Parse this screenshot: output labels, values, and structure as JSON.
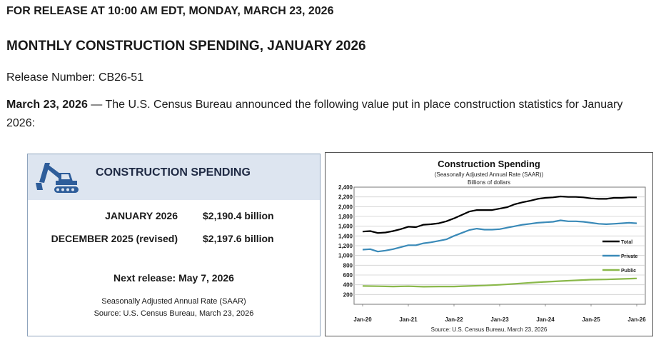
{
  "header": {
    "release_line": "FOR RELEASE AT 10:00 AM EDT, MONDAY, MARCH 23, 2026",
    "title": "MONTHLY CONSTRUCTION SPENDING, JANUARY 2026",
    "release_number": "Release Number: CB26-51",
    "intro_date": "March 23, 2026",
    "intro_text": " — The U.S. Census Bureau announced the following value put in place construction statistics for January 2026:"
  },
  "summary": {
    "title": "CONSTRUCTION SPENDING",
    "rows": [
      {
        "label": "JANUARY 2026",
        "value": "$2,190.4 billion"
      },
      {
        "label": "DECEMBER 2025 (revised)",
        "value": "$2,197.6 billion"
      }
    ],
    "next_release": "Next release: May 7, 2026",
    "saar_note": "Seasonally Adjusted Annual Rate (SAAR)",
    "source_note": "Source: U.S. Census Bureau, March 23, 2026",
    "icon": "excavator-icon",
    "colors": {
      "header_bg": "#dde5f0",
      "icon": "#2e5d9a"
    }
  },
  "chart_data": {
    "type": "line",
    "title": "Construction  Spending",
    "subtitle": "(Seasonally Adjusted Annual Rate (SAAR))",
    "unit_label": "Billions of dollars",
    "source": "Source: U.S. Census Bureau, March 23, 2026",
    "xlabel": "",
    "ylabel": "",
    "ylim": [
      0,
      2400
    ],
    "yticks": [
      "2,400",
      "2,200",
      "2,000",
      "1,800",
      "1,600",
      "1,400",
      "1,200",
      "1,000",
      "800",
      "600",
      "400",
      "200"
    ],
    "ytick_values": [
      2400,
      2200,
      2000,
      1800,
      1600,
      1400,
      1200,
      1000,
      800,
      600,
      400,
      200
    ],
    "xticks": [
      "Jan-20",
      "Jan-21",
      "Jan-22",
      "Jan-23",
      "Jan-24",
      "Jan-25",
      "Jan-26"
    ],
    "xtick_months": [
      0,
      12,
      24,
      36,
      48,
      60,
      72
    ],
    "month_span": [
      0,
      72
    ],
    "grid": true,
    "legend_position": "right",
    "series": [
      {
        "name": "Total",
        "color": "#000000",
        "points": [
          [
            0,
            1490
          ],
          [
            2,
            1500
          ],
          [
            4,
            1460
          ],
          [
            6,
            1470
          ],
          [
            8,
            1500
          ],
          [
            10,
            1540
          ],
          [
            12,
            1590
          ],
          [
            14,
            1580
          ],
          [
            16,
            1630
          ],
          [
            18,
            1640
          ],
          [
            20,
            1660
          ],
          [
            22,
            1700
          ],
          [
            24,
            1760
          ],
          [
            26,
            1830
          ],
          [
            28,
            1900
          ],
          [
            30,
            1930
          ],
          [
            32,
            1930
          ],
          [
            34,
            1930
          ],
          [
            36,
            1960
          ],
          [
            38,
            1990
          ],
          [
            40,
            2050
          ],
          [
            42,
            2090
          ],
          [
            44,
            2120
          ],
          [
            46,
            2160
          ],
          [
            48,
            2180
          ],
          [
            50,
            2190
          ],
          [
            52,
            2210
          ],
          [
            54,
            2200
          ],
          [
            56,
            2200
          ],
          [
            58,
            2190
          ],
          [
            60,
            2170
          ],
          [
            62,
            2160
          ],
          [
            64,
            2160
          ],
          [
            66,
            2180
          ],
          [
            68,
            2180
          ],
          [
            70,
            2190
          ],
          [
            72,
            2190
          ]
        ]
      },
      {
        "name": "Private",
        "color": "#3a8ab8",
        "points": [
          [
            0,
            1120
          ],
          [
            2,
            1130
          ],
          [
            4,
            1080
          ],
          [
            6,
            1100
          ],
          [
            8,
            1130
          ],
          [
            10,
            1170
          ],
          [
            12,
            1210
          ],
          [
            14,
            1210
          ],
          [
            16,
            1250
          ],
          [
            18,
            1270
          ],
          [
            20,
            1300
          ],
          [
            22,
            1330
          ],
          [
            24,
            1400
          ],
          [
            26,
            1460
          ],
          [
            28,
            1520
          ],
          [
            30,
            1550
          ],
          [
            32,
            1530
          ],
          [
            34,
            1530
          ],
          [
            36,
            1540
          ],
          [
            38,
            1570
          ],
          [
            40,
            1600
          ],
          [
            42,
            1630
          ],
          [
            44,
            1650
          ],
          [
            46,
            1670
          ],
          [
            48,
            1680
          ],
          [
            50,
            1690
          ],
          [
            52,
            1720
          ],
          [
            54,
            1700
          ],
          [
            56,
            1700
          ],
          [
            58,
            1690
          ],
          [
            60,
            1670
          ],
          [
            62,
            1650
          ],
          [
            64,
            1640
          ],
          [
            66,
            1650
          ],
          [
            68,
            1660
          ],
          [
            70,
            1670
          ],
          [
            72,
            1660
          ]
        ]
      },
      {
        "name": "Public",
        "color": "#8ab84a",
        "points": [
          [
            0,
            375
          ],
          [
            4,
            370
          ],
          [
            8,
            365
          ],
          [
            12,
            370
          ],
          [
            16,
            360
          ],
          [
            20,
            365
          ],
          [
            24,
            365
          ],
          [
            28,
            375
          ],
          [
            32,
            385
          ],
          [
            36,
            400
          ],
          [
            40,
            420
          ],
          [
            44,
            440
          ],
          [
            48,
            460
          ],
          [
            52,
            475
          ],
          [
            56,
            490
          ],
          [
            60,
            505
          ],
          [
            64,
            510
          ],
          [
            68,
            520
          ],
          [
            72,
            530
          ]
        ]
      }
    ]
  }
}
